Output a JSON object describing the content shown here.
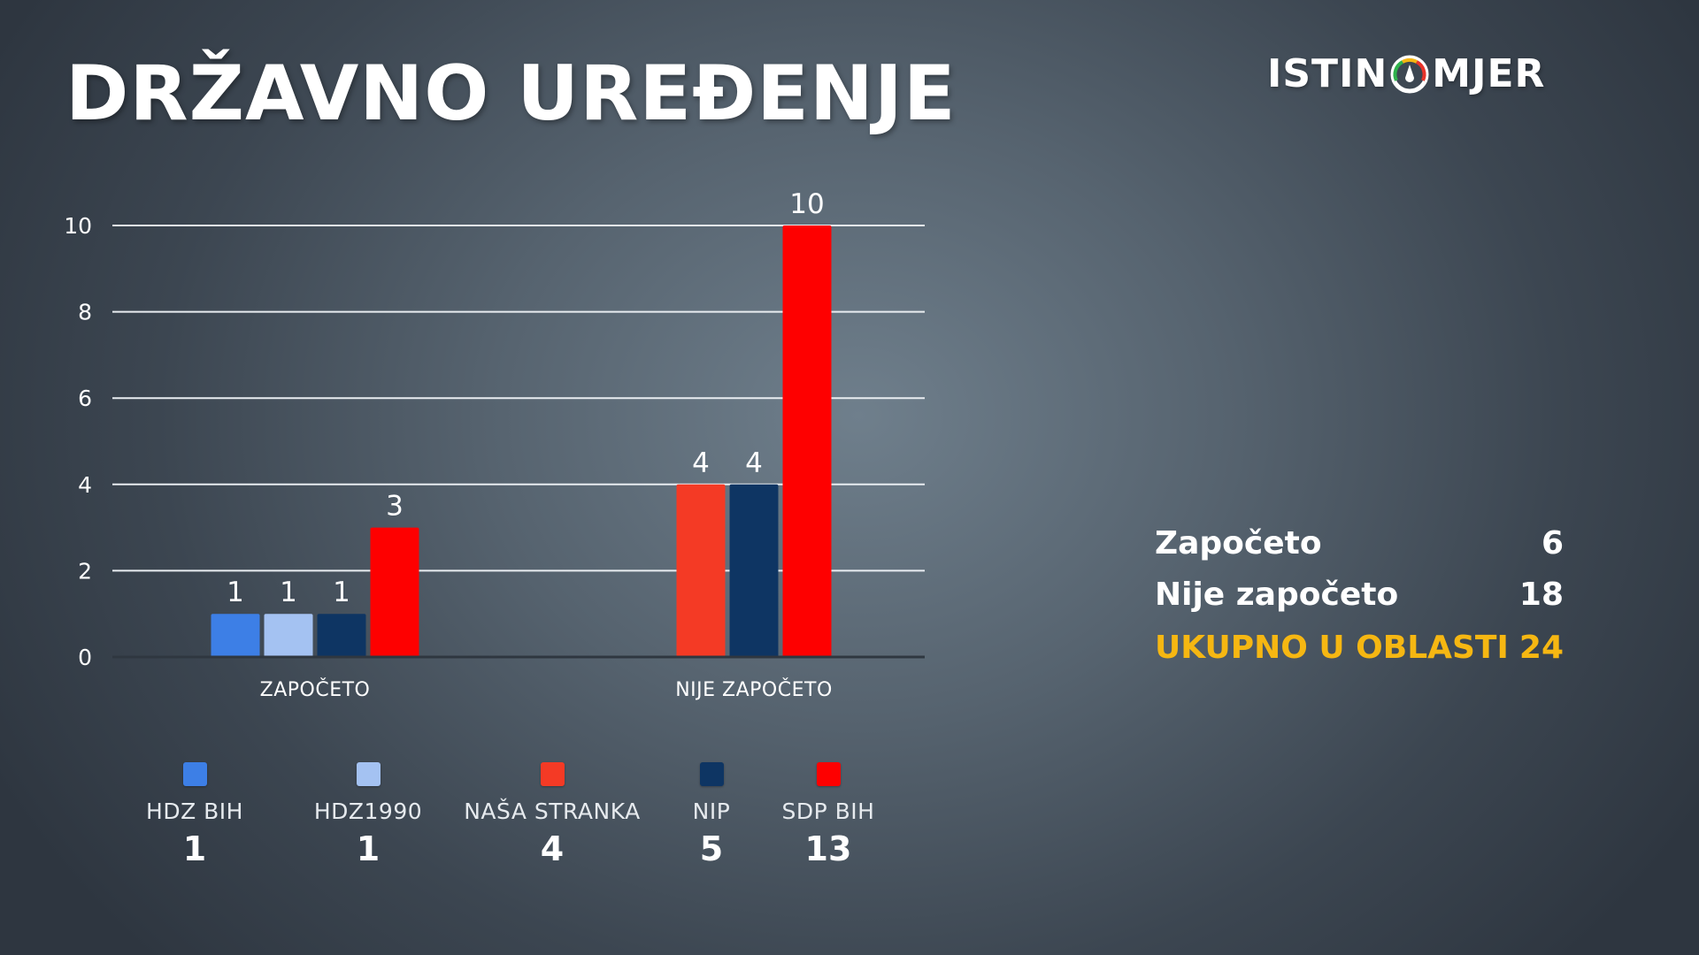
{
  "title": "DRŽAVNO UREĐENJE",
  "logo": {
    "left": "ISTIN",
    "right": "MJER"
  },
  "chart_data": {
    "type": "bar",
    "yticks": [
      0,
      2,
      4,
      6,
      8,
      10
    ],
    "ylim": [
      0,
      10
    ],
    "grid": true,
    "groups": [
      {
        "label": "ZAPOČETO",
        "bars": [
          {
            "party": "HDZ BIH",
            "value": 1,
            "color": "#3d7fe6"
          },
          {
            "party": "HDZ1990",
            "value": 1,
            "color": "#a4c2f2"
          },
          {
            "party": "NIP",
            "value": 1,
            "color": "#0e3563"
          },
          {
            "party": "SDP BIH",
            "value": 3,
            "color": "#fe0000"
          }
        ]
      },
      {
        "label": "NIJE ZAPOČETO",
        "bars": [
          {
            "party": "NAŠA STRANKA",
            "value": 4,
            "color": "#f43a25"
          },
          {
            "party": "NIP",
            "value": 4,
            "color": "#0e3563"
          },
          {
            "party": "SDP BIH",
            "value": 10,
            "color": "#fe0000"
          }
        ]
      }
    ]
  },
  "legend": [
    {
      "label": "HDZ BIH",
      "count": "1",
      "color": "#3d7fe6"
    },
    {
      "label": "HDZ1990",
      "count": "1",
      "color": "#a4c2f2"
    },
    {
      "label": "NAŠA STRANKA",
      "count": "4",
      "color": "#f43a25"
    },
    {
      "label": "NIP",
      "count": "5",
      "color": "#0e3563"
    },
    {
      "label": "SDP BIH",
      "count": "13",
      "color": "#fe0000"
    }
  ],
  "summary": {
    "started": {
      "label": "Započeto",
      "value": "6"
    },
    "not_started": {
      "label": "Nije započeto",
      "value": "18"
    },
    "total": {
      "label": "UKUPNO U OBLASTI",
      "value": "24"
    }
  },
  "colors": {
    "accent": "#f6b712"
  }
}
